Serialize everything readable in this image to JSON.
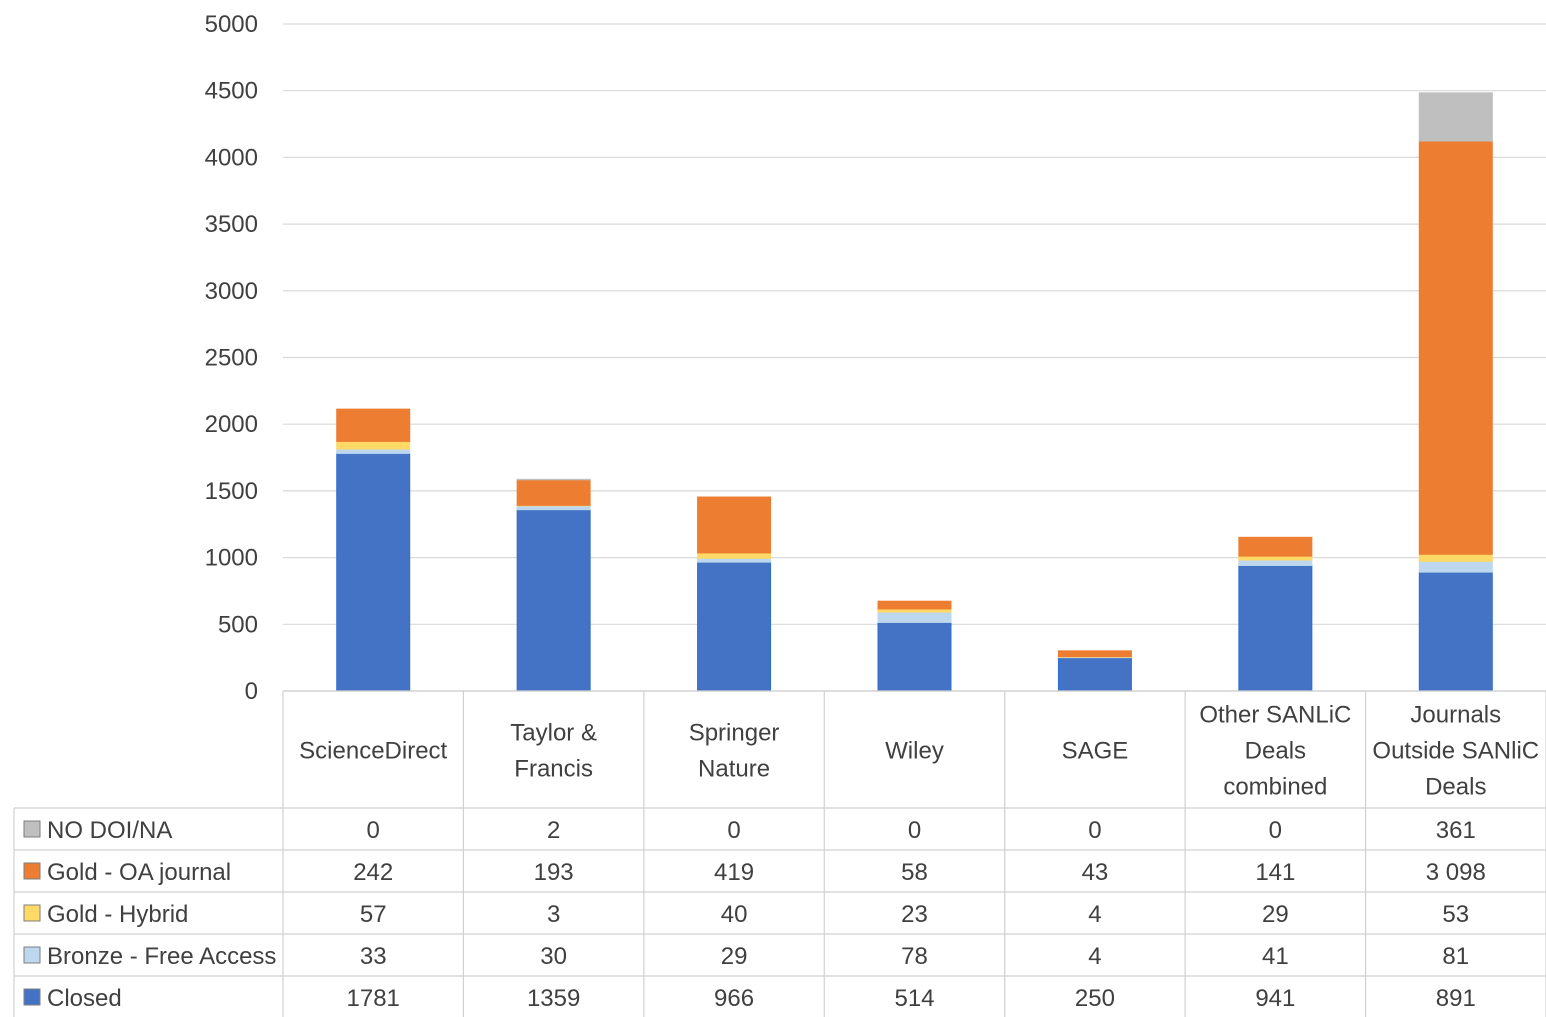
{
  "chart_data": {
    "type": "bar",
    "stacked": true,
    "categories": [
      [
        "ScienceDirect"
      ],
      [
        "Taylor &",
        "Francis"
      ],
      [
        "Springer",
        "Nature"
      ],
      [
        "Wiley"
      ],
      [
        "SAGE"
      ],
      [
        "Other SANLiC",
        "Deals",
        "combined"
      ],
      [
        "Journals",
        "Outside SANliC",
        "Deals"
      ]
    ],
    "series": [
      {
        "name": "Closed",
        "color": "#4472C4",
        "values": [
          1781,
          1359,
          966,
          514,
          250,
          941,
          891
        ],
        "display": [
          "1781",
          "1359",
          "966",
          "514",
          "250",
          "941",
          "891"
        ]
      },
      {
        "name": "Bronze - Free Access",
        "color": "#BDD7EE",
        "values": [
          33,
          30,
          29,
          78,
          4,
          41,
          81
        ],
        "display": [
          "33",
          "30",
          "29",
          "78",
          "4",
          "41",
          "81"
        ]
      },
      {
        "name": "Gold - Hybrid",
        "color": "#FFD966",
        "values": [
          57,
          3,
          40,
          23,
          4,
          29,
          53
        ],
        "display": [
          "57",
          "3",
          "40",
          "23",
          "4",
          "29",
          "53"
        ]
      },
      {
        "name": "Gold - OA journal",
        "color": "#ED7D31",
        "values": [
          242,
          193,
          419,
          58,
          43,
          141,
          3098
        ],
        "display": [
          "242",
          "193",
          "419",
          "58",
          "43",
          "141",
          "3 098"
        ]
      },
      {
        "name": "NO DOI/NA",
        "color": "#BFBFBF",
        "values": [
          0,
          2,
          0,
          0,
          0,
          0,
          361
        ],
        "display": [
          "0",
          "2",
          "0",
          "0",
          "0",
          "0",
          "361"
        ]
      }
    ],
    "table_row_order": [
      "NO DOI/NA",
      "Gold - OA journal",
      "Gold - Hybrid",
      "Bronze - Free Access",
      "Closed"
    ],
    "ylim": [
      0,
      5000
    ],
    "yticks": [
      0,
      500,
      1000,
      1500,
      2000,
      2500,
      3000,
      3500,
      4000,
      4500,
      5000
    ],
    "gridlines": true,
    "legend": "data-table-left"
  }
}
